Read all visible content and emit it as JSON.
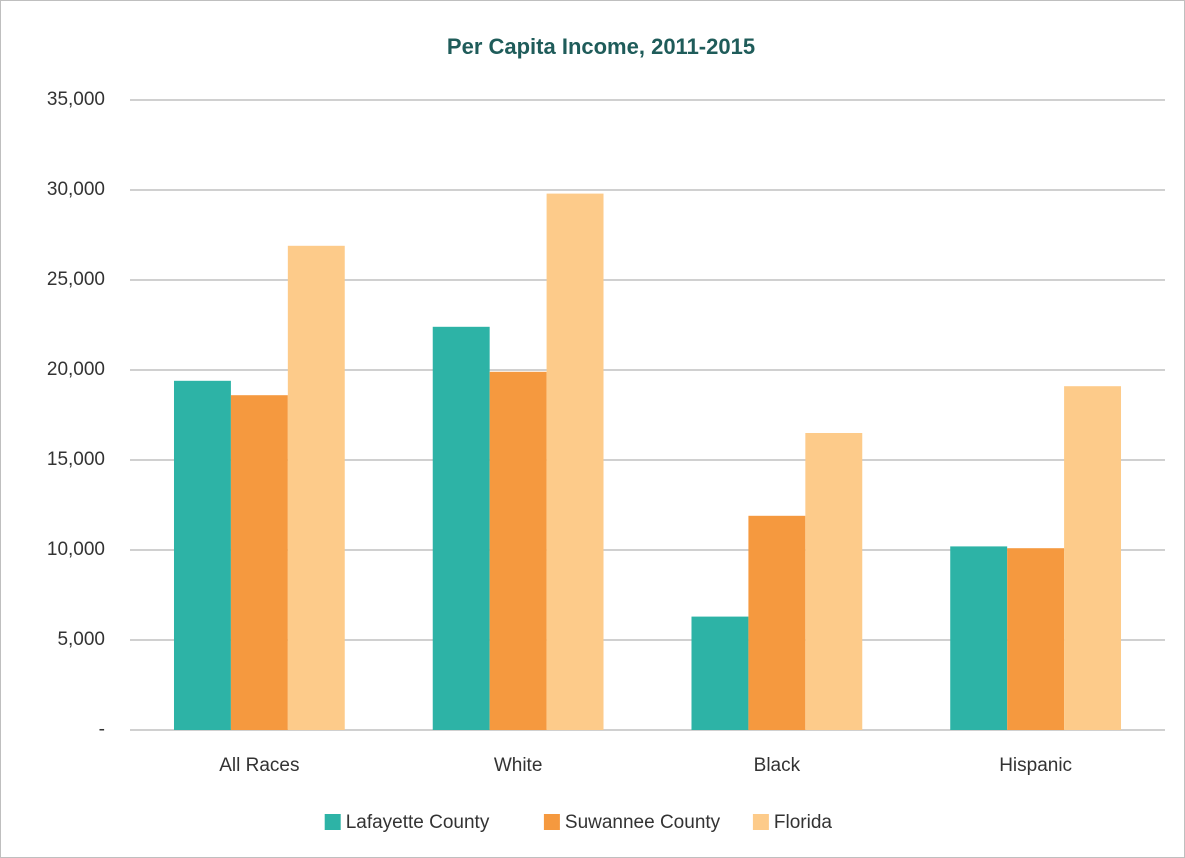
{
  "chart_data": {
    "type": "bar",
    "title": "Per Capita Income, 2011-2015",
    "categories": [
      "All Races",
      "White",
      "Black",
      "Hispanic"
    ],
    "series": [
      {
        "name": "Lafayette County",
        "color": "#2db3a6",
        "values": [
          19400,
          22400,
          6300,
          10200
        ]
      },
      {
        "name": "Suwannee County",
        "color": "#f5993f",
        "values": [
          18600,
          19900,
          11900,
          10100
        ]
      },
      {
        "name": "Florida",
        "color": "#fdcb8a",
        "values": [
          26900,
          29800,
          16500,
          19100
        ]
      }
    ],
    "ylim": [
      0,
      35000
    ],
    "yticks": [
      {
        "value": 0,
        "label": "-"
      },
      {
        "value": 5000,
        "label": "5,000"
      },
      {
        "value": 10000,
        "label": "10,000"
      },
      {
        "value": 15000,
        "label": "15,000"
      },
      {
        "value": 20000,
        "label": "20,000"
      },
      {
        "value": 25000,
        "label": "25,000"
      },
      {
        "value": 30000,
        "label": "30,000"
      },
      {
        "value": 35000,
        "label": "35,000"
      }
    ],
    "grid": true,
    "legend": "bottom"
  }
}
